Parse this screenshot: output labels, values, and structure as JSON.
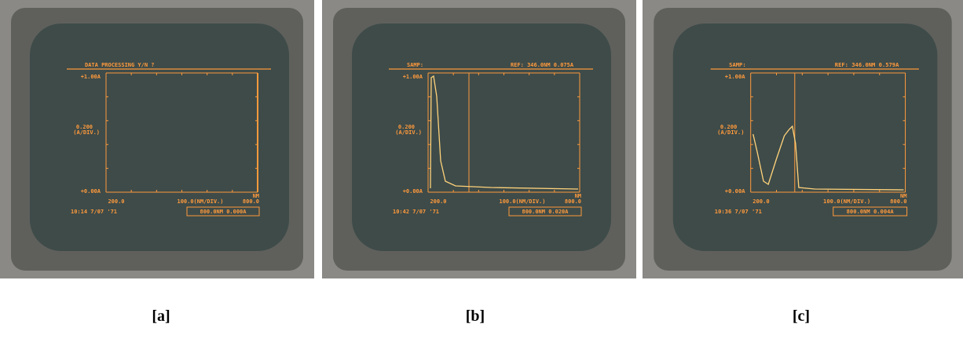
{
  "panels": [
    {
      "caption": "[a]",
      "screen": {
        "header": [
          "DATA PROCESSING Y/N ?"
        ],
        "y_top": "+1.00A",
        "y_mid": "0.200",
        "y_unit": "(A/DIV.)",
        "y_bottom": "+0.00A",
        "x_left": "200.0",
        "x_scale": "100.0(NM/DIV.)",
        "x_right": "800.0",
        "x_unit": "NM",
        "timestamp": "10:14  7/07 '71",
        "readout": "800.0NM  0.000A"
      }
    },
    {
      "caption": "[b]",
      "screen": {
        "header": [
          "SAMP:",
          "REF:  346.0NM  0.075A"
        ],
        "y_top": "+1.00A",
        "y_mid": "0.200",
        "y_unit": "(A/DIV.)",
        "y_bottom": "+0.00A",
        "x_left": "200.0",
        "x_scale": "100.0(NM/DIV.)",
        "x_right": "800.0",
        "x_unit": "NM",
        "timestamp": "10:42  7/07 '71",
        "readout": "800.0NM  0.020A"
      }
    },
    {
      "caption": "[c]",
      "screen": {
        "header": [
          "SAMP:",
          "REF:  346.0NM  0.579A"
        ],
        "y_top": "+1.00A",
        "y_mid": "0.200",
        "y_unit": "(A/DIV.)",
        "y_bottom": "+0.00A",
        "x_left": "200.0",
        "x_scale": "100.0(NM/DIV.)",
        "x_right": "800.0",
        "x_unit": "NM",
        "timestamp": "10:36  7/07 '71",
        "readout": "800.0NM  0.004A"
      }
    }
  ]
}
